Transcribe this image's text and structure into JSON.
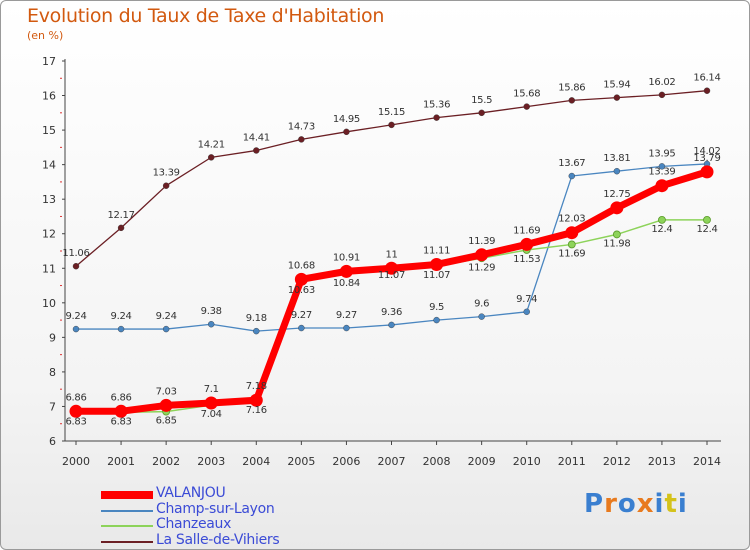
{
  "header": {
    "title": "Evolution du Taux de Taxe d'Habitation",
    "unit": "(en %)"
  },
  "logo": {
    "text": "Proxiti"
  },
  "chart_data": {
    "type": "line",
    "title": "Evolution du Taux de Taxe d'Habitation",
    "ylabel": "(en %)",
    "xlabel": "",
    "ylim": [
      6,
      17
    ],
    "yticks": [
      6,
      7,
      8,
      9,
      10,
      11,
      12,
      13,
      14,
      15,
      16,
      17
    ],
    "x": [
      "2000",
      "2001",
      "2002",
      "2003",
      "2004",
      "2005",
      "2006",
      "2007",
      "2008",
      "2009",
      "2010",
      "2011",
      "2012",
      "2013",
      "2014"
    ],
    "grid": false,
    "legend_position": "bottom-left",
    "series": [
      {
        "name": "La Salle-de-Vihiers",
        "color": "#6b1f24",
        "values": [
          11.06,
          12.17,
          13.39,
          14.21,
          14.41,
          14.73,
          14.95,
          15.15,
          15.36,
          15.5,
          15.68,
          15.86,
          15.94,
          16.02,
          16.14
        ],
        "labels": [
          "11.06",
          "12.17",
          "13.39",
          "14.21",
          "14.41",
          "14.73",
          "14.95",
          "15.15",
          "15.36",
          "15.5",
          "15.68",
          "15.86",
          "15.94",
          "16.02",
          "16.14"
        ]
      },
      {
        "name": "Champ-sur-Layon",
        "color": "#4a86c0",
        "values": [
          9.24,
          9.24,
          9.24,
          9.38,
          9.18,
          9.27,
          9.27,
          9.36,
          9.5,
          9.6,
          9.74,
          13.67,
          13.81,
          13.95,
          14.02
        ],
        "labels": [
          "9.24",
          "9.24",
          "9.24",
          "9.38",
          "9.18",
          "9.27",
          "9.27",
          "9.36",
          "9.5",
          "9.6",
          "9.74",
          "13.67",
          "13.81",
          "13.95",
          "14.02"
        ]
      },
      {
        "name": "Chanzeaux",
        "color": "#8dd35a",
        "values": [
          6.83,
          6.83,
          6.85,
          7.04,
          7.16,
          10.63,
          10.84,
          11.07,
          11.07,
          11.29,
          11.53,
          11.69,
          11.98,
          12.4,
          12.4
        ],
        "labels": [
          "6.83",
          "6.83",
          "6.85",
          "7.04",
          "7.16",
          "10.63",
          "10.84",
          "11.07",
          "11.07",
          "11.29",
          "11.53",
          "11.69",
          "11.98",
          "12.4",
          "12.4"
        ]
      },
      {
        "name": "VALANJOU",
        "color": "#ff0000",
        "values": [
          6.86,
          6.86,
          7.03,
          7.1,
          7.18,
          10.68,
          10.91,
          11.0,
          11.11,
          11.39,
          11.69,
          12.03,
          12.75,
          13.39,
          13.79
        ],
        "labels": [
          "6.86",
          "6.86",
          "7.03",
          "7.1",
          "7.18",
          "10.68",
          "10.91",
          "11",
          "11.11",
          "11.39",
          "11.69",
          "12.03",
          "12.75",
          "13.39",
          "13.79"
        ]
      }
    ]
  }
}
